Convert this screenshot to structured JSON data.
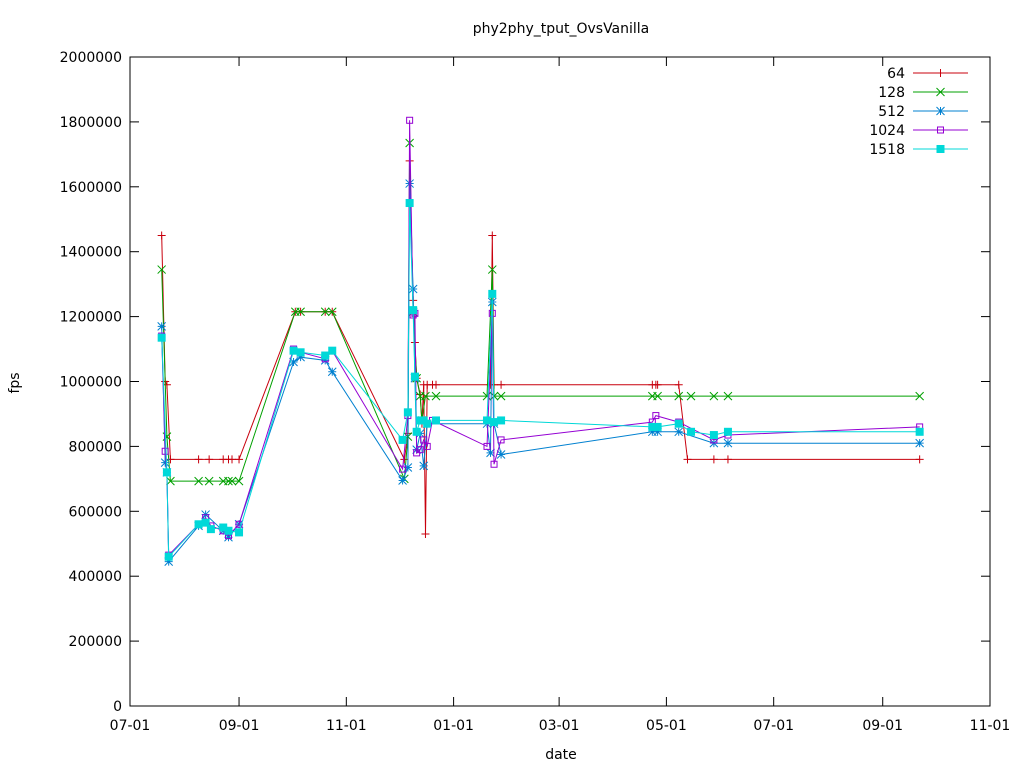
{
  "chart_data": {
    "type": "line",
    "title": "phy2phy_tput_OvsVanilla",
    "xlabel": "date",
    "ylabel": "fps",
    "x_scale": "date",
    "xlim": [
      "2015-07-01",
      "2016-11-01"
    ],
    "ylim": [
      0,
      2000000
    ],
    "x_ticks": [
      {
        "label": "07-01",
        "date": "2015-07-01"
      },
      {
        "label": "09-01",
        "date": "2015-09-01"
      },
      {
        "label": "11-01",
        "date": "2015-11-01"
      },
      {
        "label": "01-01",
        "date": "2016-01-01"
      },
      {
        "label": "03-01",
        "date": "2016-03-01"
      },
      {
        "label": "05-01",
        "date": "2016-05-01"
      },
      {
        "label": "07-01",
        "date": "2016-07-01"
      },
      {
        "label": "09-01",
        "date": "2016-09-01"
      },
      {
        "label": "11-01",
        "date": "2016-11-01"
      }
    ],
    "y_ticks": [
      {
        "label": "0",
        "value": 0
      },
      {
        "label": "200000",
        "value": 200000
      },
      {
        "label": "400000",
        "value": 400000
      },
      {
        "label": "600000",
        "value": 600000
      },
      {
        "label": "800000",
        "value": 800000
      },
      {
        "label": "1000000",
        "value": 1000000
      },
      {
        "label": "1200000",
        "value": 1200000
      },
      {
        "label": "1400000",
        "value": 1400000
      },
      {
        "label": "1600000",
        "value": 1600000
      },
      {
        "label": "1800000",
        "value": 1800000
      },
      {
        "label": "2000000",
        "value": 2000000
      }
    ],
    "grid": false,
    "legend": "top-right",
    "series": [
      {
        "name": "64",
        "color": "#c8000d",
        "marker": "plus",
        "points": [
          [
            "2015-07-19",
            1450000
          ],
          [
            "2015-07-21",
            1000000
          ],
          [
            "2015-07-22",
            990000
          ],
          [
            "2015-07-24",
            760000
          ],
          [
            "2015-08-09",
            760000
          ],
          [
            "2015-08-15",
            760000
          ],
          [
            "2015-08-23",
            760000
          ],
          [
            "2015-08-26",
            760000
          ],
          [
            "2015-08-28",
            760000
          ],
          [
            "2015-09-01",
            760000
          ],
          [
            "2015-10-03",
            1215000
          ],
          [
            "2015-10-06",
            1215000
          ],
          [
            "2015-10-20",
            1215000
          ],
          [
            "2015-10-24",
            1215000
          ],
          [
            "2015-12-04",
            760000
          ],
          [
            "2015-12-06",
            840000
          ],
          [
            "2015-12-07",
            1680000
          ],
          [
            "2015-12-09",
            1250000
          ],
          [
            "2015-12-10",
            1120000
          ],
          [
            "2015-12-11",
            1010000
          ],
          [
            "2015-12-13",
            960000
          ],
          [
            "2015-12-14",
            870000
          ],
          [
            "2015-12-15",
            990000
          ],
          [
            "2015-12-16",
            530000
          ],
          [
            "2015-12-17",
            990000
          ],
          [
            "2015-12-20",
            990000
          ],
          [
            "2015-12-22",
            990000
          ],
          [
            "2016-01-22",
            990000
          ],
          [
            "2016-01-23",
            1450000
          ],
          [
            "2016-01-24",
            990000
          ],
          [
            "2016-01-28",
            990000
          ],
          [
            "2016-04-23",
            990000
          ],
          [
            "2016-04-25",
            990000
          ],
          [
            "2016-04-26",
            990000
          ],
          [
            "2016-05-08",
            990000
          ],
          [
            "2016-05-13",
            760000
          ],
          [
            "2016-05-28",
            760000
          ],
          [
            "2016-06-05",
            760000
          ],
          [
            "2016-09-22",
            760000
          ]
        ]
      },
      {
        "name": "128",
        "color": "#00a000",
        "marker": "cross",
        "points": [
          [
            "2015-07-19",
            1345000
          ],
          [
            "2015-07-22",
            830000
          ],
          [
            "2015-07-24",
            693000
          ],
          [
            "2015-08-09",
            693000
          ],
          [
            "2015-08-15",
            693000
          ],
          [
            "2015-08-23",
            693000
          ],
          [
            "2015-08-26",
            693000
          ],
          [
            "2015-08-28",
            693000
          ],
          [
            "2015-09-01",
            693000
          ],
          [
            "2015-10-03",
            1215000
          ],
          [
            "2015-10-06",
            1215000
          ],
          [
            "2015-10-20",
            1215000
          ],
          [
            "2015-10-24",
            1215000
          ],
          [
            "2015-12-04",
            700000
          ],
          [
            "2015-12-06",
            830000
          ],
          [
            "2015-12-07",
            1735000
          ],
          [
            "2015-12-09",
            1215000
          ],
          [
            "2015-12-11",
            1010000
          ],
          [
            "2015-12-13",
            955000
          ],
          [
            "2015-12-14",
            880000
          ],
          [
            "2015-12-16",
            955000
          ],
          [
            "2015-12-22",
            955000
          ],
          [
            "2016-01-20",
            955000
          ],
          [
            "2016-01-23",
            1345000
          ],
          [
            "2016-01-24",
            955000
          ],
          [
            "2016-01-28",
            955000
          ],
          [
            "2016-04-23",
            955000
          ],
          [
            "2016-04-26",
            955000
          ],
          [
            "2016-05-08",
            955000
          ],
          [
            "2016-05-15",
            955000
          ],
          [
            "2016-05-28",
            955000
          ],
          [
            "2016-06-05",
            955000
          ],
          [
            "2016-09-22",
            955000
          ]
        ]
      },
      {
        "name": "512",
        "color": "#0080d0",
        "marker": "star",
        "points": [
          [
            "2015-07-19",
            1170000
          ],
          [
            "2015-07-21",
            750000
          ],
          [
            "2015-07-22",
            720000
          ],
          [
            "2015-07-23",
            445000
          ],
          [
            "2015-08-09",
            555000
          ],
          [
            "2015-08-13",
            590000
          ],
          [
            "2015-08-23",
            540000
          ],
          [
            "2015-08-26",
            520000
          ],
          [
            "2015-09-01",
            560000
          ],
          [
            "2015-10-02",
            1060000
          ],
          [
            "2015-10-06",
            1075000
          ],
          [
            "2015-10-20",
            1065000
          ],
          [
            "2015-10-24",
            1030000
          ],
          [
            "2015-12-03",
            695000
          ],
          [
            "2015-12-06",
            735000
          ],
          [
            "2015-12-07",
            1610000
          ],
          [
            "2015-12-09",
            1285000
          ],
          [
            "2015-12-10",
            1010000
          ],
          [
            "2015-12-11",
            790000
          ],
          [
            "2015-12-13",
            840000
          ],
          [
            "2015-12-15",
            740000
          ],
          [
            "2015-12-17",
            870000
          ],
          [
            "2016-01-20",
            870000
          ],
          [
            "2016-01-22",
            780000
          ],
          [
            "2016-01-23",
            1245000
          ],
          [
            "2016-01-24",
            870000
          ],
          [
            "2016-01-28",
            775000
          ],
          [
            "2016-04-23",
            845000
          ],
          [
            "2016-04-26",
            845000
          ],
          [
            "2016-05-08",
            845000
          ],
          [
            "2016-05-28",
            810000
          ],
          [
            "2016-06-05",
            810000
          ],
          [
            "2016-09-22",
            810000
          ]
        ]
      },
      {
        "name": "1024",
        "color": "#9400d3",
        "marker": "square",
        "points": [
          [
            "2015-07-19",
            1140000
          ],
          [
            "2015-07-21",
            785000
          ],
          [
            "2015-07-22",
            720000
          ],
          [
            "2015-07-23",
            465000
          ],
          [
            "2015-08-09",
            560000
          ],
          [
            "2015-08-13",
            580000
          ],
          [
            "2015-08-16",
            555000
          ],
          [
            "2015-08-23",
            540000
          ],
          [
            "2015-08-26",
            525000
          ],
          [
            "2015-09-01",
            560000
          ],
          [
            "2015-10-02",
            1100000
          ],
          [
            "2015-10-06",
            1090000
          ],
          [
            "2015-10-20",
            1070000
          ],
          [
            "2015-10-24",
            1095000
          ],
          [
            "2015-12-03",
            730000
          ],
          [
            "2015-12-06",
            895000
          ],
          [
            "2015-12-07",
            1805000
          ],
          [
            "2015-12-09",
            1205000
          ],
          [
            "2015-12-10",
            1210000
          ],
          [
            "2015-12-11",
            780000
          ],
          [
            "2015-12-13",
            790000
          ],
          [
            "2015-12-15",
            820000
          ],
          [
            "2015-12-17",
            800000
          ],
          [
            "2015-12-20",
            880000
          ],
          [
            "2016-01-20",
            800000
          ],
          [
            "2016-01-23",
            1210000
          ],
          [
            "2016-01-24",
            745000
          ],
          [
            "2016-01-28",
            820000
          ],
          [
            "2016-04-23",
            875000
          ],
          [
            "2016-04-25",
            895000
          ],
          [
            "2016-05-08",
            875000
          ],
          [
            "2016-05-28",
            820000
          ],
          [
            "2016-06-05",
            835000
          ],
          [
            "2016-09-22",
            860000
          ]
        ]
      },
      {
        "name": "1518",
        "color": "#00d8d8",
        "marker": "filled-square",
        "points": [
          [
            "2015-07-19",
            1135000
          ],
          [
            "2015-07-22",
            720000
          ],
          [
            "2015-07-23",
            460000
          ],
          [
            "2015-08-09",
            560000
          ],
          [
            "2015-08-13",
            565000
          ],
          [
            "2015-08-16",
            545000
          ],
          [
            "2015-08-23",
            550000
          ],
          [
            "2015-08-26",
            540000
          ],
          [
            "2015-09-01",
            535000
          ],
          [
            "2015-10-02",
            1095000
          ],
          [
            "2015-10-06",
            1090000
          ],
          [
            "2015-10-20",
            1080000
          ],
          [
            "2015-10-24",
            1095000
          ],
          [
            "2015-12-03",
            820000
          ],
          [
            "2015-12-06",
            905000
          ],
          [
            "2015-12-07",
            1550000
          ],
          [
            "2015-12-09",
            1220000
          ],
          [
            "2015-12-10",
            1015000
          ],
          [
            "2015-12-11",
            845000
          ],
          [
            "2015-12-13",
            880000
          ],
          [
            "2015-12-15",
            880000
          ],
          [
            "2015-12-17",
            870000
          ],
          [
            "2015-12-22",
            880000
          ],
          [
            "2016-01-20",
            880000
          ],
          [
            "2016-01-23",
            1270000
          ],
          [
            "2016-01-24",
            875000
          ],
          [
            "2016-01-28",
            880000
          ],
          [
            "2016-04-23",
            860000
          ],
          [
            "2016-04-26",
            860000
          ],
          [
            "2016-05-08",
            870000
          ],
          [
            "2016-05-15",
            845000
          ],
          [
            "2016-05-28",
            835000
          ],
          [
            "2016-06-05",
            845000
          ],
          [
            "2016-09-22",
            845000
          ]
        ]
      }
    ]
  }
}
